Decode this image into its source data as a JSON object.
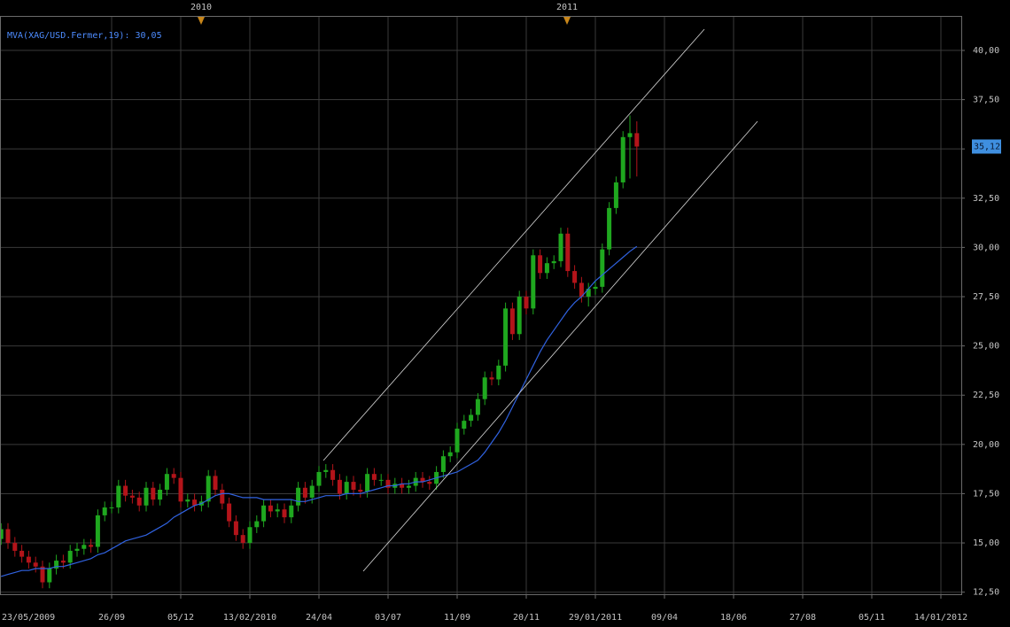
{
  "chart_data": {
    "type": "candlestick",
    "indicator_label": "MVA(XAG/USD.Fermer,19): 30,05",
    "year_labels": [
      "2010",
      "2011"
    ],
    "categories": [
      "23/05/2009",
      null,
      null,
      null,
      null,
      null,
      null,
      null,
      null,
      null,
      null,
      null,
      null,
      null,
      null,
      null,
      null,
      null,
      "26/09",
      null,
      null,
      null,
      null,
      null,
      null,
      null,
      null,
      null,
      "05/12",
      null,
      null,
      null,
      null,
      null,
      null,
      null,
      null,
      null,
      "13/02/2010",
      null,
      null,
      null,
      null,
      null,
      null,
      null,
      null,
      null,
      "24/04",
      null,
      null,
      null,
      null,
      null,
      null,
      null,
      null,
      null,
      "03/07",
      null,
      null,
      null,
      null,
      null,
      null,
      null,
      null,
      null,
      "11/09",
      null,
      null,
      null,
      null,
      null,
      null,
      null,
      null,
      null,
      "20/11",
      null,
      null,
      null,
      null,
      null,
      null,
      null,
      null,
      null,
      "29/01/2011",
      null,
      null,
      null,
      null,
      null,
      null,
      null,
      null,
      null,
      "09/04",
      null,
      null,
      null,
      null,
      null,
      null,
      null,
      null,
      null,
      "18/06",
      null,
      null,
      null,
      null,
      null,
      null,
      null,
      null,
      null,
      "27/08",
      null,
      null,
      null,
      null,
      null,
      null,
      null,
      null,
      null,
      "05/11",
      null,
      null,
      null,
      null,
      null,
      null,
      null,
      null,
      null,
      "14/01/2012",
      null,
      null
    ],
    "open": [
      null,
      null,
      15.2,
      15.7,
      15.0,
      14.6,
      14.3,
      14.0,
      13.8,
      13.0,
      13.7,
      14.1,
      14.0,
      14.6,
      14.7,
      14.9,
      14.8,
      16.4,
      16.8,
      16.8,
      17.9,
      17.4,
      17.3,
      16.9,
      17.8,
      17.2,
      17.7,
      18.5,
      18.3,
      17.1,
      17.2,
      16.9,
      17.1,
      18.4,
      17.7,
      17.0,
      16.1,
      15.4,
      15.0,
      15.8,
      16.1,
      16.9,
      16.6,
      16.7,
      16.3,
      16.9,
      17.8,
      17.3,
      17.9,
      18.6,
      18.7,
      18.2,
      17.5,
      18.1,
      17.7,
      17.6,
      18.5,
      18.2,
      18.2,
      17.8,
      18.0,
      17.8,
      17.9,
      18.3,
      18.1,
      18.0,
      18.6,
      19.4,
      19.6,
      20.8,
      21.2,
      21.5,
      22.3,
      23.4,
      23.3,
      24.0,
      26.9,
      25.6,
      27.5,
      26.9,
      29.6,
      28.7,
      29.2,
      29.3,
      30.7,
      28.8,
      28.2,
      27.5,
      27.9,
      28.0,
      29.9,
      32.0,
      33.3,
      35.6,
      35.8,
      null,
      null,
      null,
      null,
      null,
      null,
      null,
      null,
      null,
      null,
      null,
      null,
      null,
      null,
      null,
      null,
      null,
      null,
      null,
      null,
      null,
      null,
      null,
      null,
      null,
      null,
      null,
      null,
      null,
      null,
      null,
      null,
      null,
      null,
      null,
      null,
      null,
      null,
      null,
      null,
      null,
      null,
      null,
      null,
      null,
      null
    ],
    "high": [
      null,
      null,
      16.0,
      16.0,
      15.3,
      14.9,
      14.6,
      14.3,
      14.1,
      14.0,
      14.4,
      14.4,
      14.9,
      15.0,
      15.2,
      15.2,
      16.7,
      17.1,
      17.1,
      18.2,
      18.2,
      17.7,
      17.6,
      18.1,
      18.1,
      18.0,
      18.8,
      18.8,
      18.6,
      17.5,
      17.5,
      17.4,
      18.7,
      18.7,
      18.0,
      17.3,
      16.4,
      15.7,
      16.1,
      16.4,
      17.2,
      17.2,
      17.0,
      17.0,
      17.2,
      18.1,
      18.1,
      18.2,
      18.9,
      19.0,
      19.0,
      18.5,
      18.4,
      18.4,
      18.0,
      18.8,
      18.8,
      18.5,
      18.5,
      18.3,
      18.3,
      18.2,
      18.6,
      18.6,
      18.4,
      18.9,
      19.7,
      19.9,
      21.1,
      21.5,
      21.8,
      22.6,
      23.7,
      23.7,
      24.3,
      27.2,
      27.2,
      27.8,
      27.8,
      29.9,
      29.9,
      29.5,
      29.6,
      31.0,
      31.0,
      29.1,
      28.5,
      28.2,
      28.3,
      30.2,
      32.3,
      33.6,
      35.9,
      36.7,
      36.4,
      null,
      null,
      null,
      null,
      null,
      null,
      null,
      null,
      null,
      null,
      null,
      null,
      null,
      null,
      null,
      null,
      null,
      null,
      null,
      null,
      null,
      null,
      null,
      null,
      null,
      null,
      null,
      null,
      null,
      null,
      null,
      null,
      null,
      null,
      null,
      null,
      null,
      null,
      null,
      null,
      null,
      null,
      null,
      null,
      null,
      null
    ],
    "low": [
      null,
      null,
      14.9,
      14.7,
      14.3,
      14.0,
      13.7,
      13.5,
      12.7,
      12.7,
      13.4,
      13.7,
      13.7,
      14.3,
      14.4,
      14.5,
      14.5,
      16.1,
      16.5,
      16.5,
      17.1,
      17.0,
      16.6,
      16.6,
      16.9,
      16.9,
      17.4,
      18.0,
      16.8,
      16.8,
      16.6,
      16.6,
      16.8,
      17.4,
      16.7,
      15.8,
      15.1,
      14.7,
      14.7,
      15.5,
      15.8,
      16.3,
      16.3,
      16.0,
      16.0,
      16.6,
      17.0,
      17.0,
      17.6,
      18.3,
      17.9,
      17.2,
      17.2,
      17.4,
      17.3,
      17.3,
      17.9,
      17.9,
      17.5,
      17.5,
      17.5,
      17.5,
      17.6,
      17.8,
      17.7,
      17.7,
      18.3,
      19.1,
      19.3,
      20.5,
      20.9,
      21.2,
      22.0,
      23.0,
      23.0,
      23.7,
      25.3,
      25.3,
      26.6,
      26.6,
      28.4,
      28.4,
      28.9,
      29.0,
      28.5,
      27.9,
      27.2,
      27.0,
      27.6,
      27.7,
      29.6,
      31.7,
      33.0,
      33.5,
      33.6,
      null,
      null,
      null,
      null,
      null,
      null,
      null,
      null,
      null,
      null,
      null,
      null,
      null,
      null,
      null,
      null,
      null,
      null,
      null,
      null,
      null,
      null,
      null,
      null,
      null,
      null,
      null,
      null,
      null,
      null,
      null,
      null,
      null,
      null,
      null,
      null,
      null,
      null,
      null,
      null,
      null,
      null,
      null,
      null,
      null,
      null
    ],
    "close": [
      null,
      null,
      15.7,
      15.0,
      14.6,
      14.3,
      14.0,
      13.8,
      13.0,
      13.7,
      14.1,
      14.0,
      14.6,
      14.7,
      14.9,
      14.8,
      16.4,
      16.8,
      16.8,
      17.9,
      17.4,
      17.3,
      16.9,
      17.8,
      17.2,
      17.7,
      18.5,
      18.3,
      17.1,
      17.2,
      16.9,
      17.1,
      18.4,
      17.7,
      17.0,
      16.1,
      15.4,
      15.0,
      15.8,
      16.1,
      16.9,
      16.6,
      16.7,
      16.3,
      16.9,
      17.8,
      17.3,
      17.9,
      18.6,
      18.7,
      18.2,
      17.5,
      18.1,
      17.7,
      17.6,
      18.5,
      18.2,
      18.2,
      17.8,
      18.0,
      17.8,
      17.9,
      18.3,
      18.1,
      18.0,
      18.6,
      19.4,
      19.6,
      20.8,
      21.2,
      21.5,
      22.3,
      23.4,
      23.3,
      24.0,
      26.9,
      25.6,
      27.5,
      26.9,
      29.6,
      28.7,
      29.2,
      29.3,
      30.7,
      28.8,
      28.2,
      27.5,
      27.9,
      28.0,
      29.9,
      32.0,
      33.3,
      35.6,
      35.8,
      35.12,
      null,
      null,
      null,
      null,
      null,
      null,
      null,
      null,
      null,
      null,
      null,
      null,
      null,
      null,
      null,
      null,
      null,
      null,
      null,
      null,
      null,
      null,
      null,
      null,
      null,
      null,
      null,
      null,
      null,
      null,
      null,
      null,
      null,
      null,
      null,
      null,
      null,
      null,
      null,
      null,
      null,
      null,
      null,
      null,
      null,
      null
    ],
    "up_color": "#1fa81f",
    "down_color": "#b3141a",
    "mva": {
      "color": "#3062e0",
      "values": [
        null,
        null,
        13.3,
        13.4,
        13.5,
        13.6,
        13.6,
        13.7,
        13.7,
        13.7,
        13.8,
        13.8,
        13.9,
        14.0,
        14.1,
        14.2,
        14.4,
        14.5,
        14.7,
        14.9,
        15.1,
        15.2,
        15.3,
        15.4,
        15.6,
        15.8,
        16.0,
        16.3,
        16.5,
        16.7,
        16.9,
        17.0,
        17.2,
        17.4,
        17.5,
        17.5,
        17.4,
        17.3,
        17.3,
        17.3,
        17.2,
        17.2,
        17.2,
        17.2,
        17.2,
        17.1,
        17.1,
        17.2,
        17.3,
        17.4,
        17.4,
        17.4,
        17.5,
        17.5,
        17.5,
        17.6,
        17.7,
        17.8,
        17.9,
        17.9,
        18.0,
        18.0,
        18.1,
        18.1,
        18.2,
        18.3,
        18.4,
        18.5,
        18.6,
        18.8,
        19.0,
        19.2,
        19.6,
        20.1,
        20.6,
        21.2,
        21.9,
        22.6,
        23.3,
        24.0,
        24.7,
        25.3,
        25.8,
        26.3,
        26.8,
        27.2,
        27.5,
        27.9,
        28.3,
        28.6,
        28.9,
        29.2,
        29.5,
        29.8,
        30.05,
        null,
        null,
        null,
        null,
        null,
        null,
        null,
        null,
        null,
        null,
        null,
        null,
        null,
        null,
        null,
        null,
        null,
        null,
        null,
        null,
        null,
        null,
        null,
        null,
        null,
        null,
        null,
        null,
        null,
        null,
        null,
        null,
        null,
        null,
        null,
        null,
        null,
        null,
        null,
        null,
        null,
        null,
        null,
        null,
        null,
        null
      ]
    },
    "last_price": {
      "value": 35.12,
      "label": "35,12"
    },
    "ylim": [
      12.35,
      41.75
    ],
    "yticks": [
      {
        "value": 12.5,
        "label": "12,50"
      },
      {
        "value": 15,
        "label": "15,00"
      },
      {
        "value": 17.5,
        "label": "17,50"
      },
      {
        "value": 20,
        "label": "20,00"
      },
      {
        "value": 22.5,
        "label": "22,50"
      },
      {
        "value": 25,
        "label": "25,00"
      },
      {
        "value": 27.5,
        "label": "27,50"
      },
      {
        "value": 30,
        "label": "30,00"
      },
      {
        "value": 32.5,
        "label": "32,50"
      },
      {
        "value": 35,
        "label": "35,00"
      },
      {
        "value": 37.5,
        "label": "37,50"
      },
      {
        "value": 40,
        "label": "40,00"
      }
    ],
    "grid": true
  }
}
